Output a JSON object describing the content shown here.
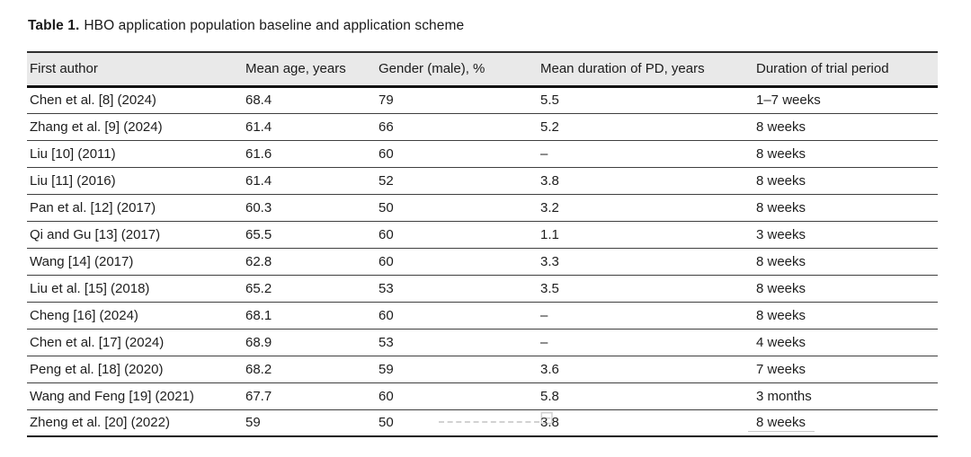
{
  "caption": {
    "label": "Table 1.",
    "text": "HBO application population baseline and application scheme"
  },
  "table": {
    "columns": [
      "First author",
      "Mean age, years",
      "Gender (male), %",
      "Mean duration of PD, years",
      "Duration of trial period"
    ],
    "rows": [
      [
        "Chen et al. [8] (2024)",
        "68.4",
        "79",
        "5.5",
        "1–7 weeks"
      ],
      [
        "Zhang et al. [9] (2024)",
        "61.4",
        "66",
        "5.2",
        "8 weeks"
      ],
      [
        "Liu [10] (2011)",
        "61.6",
        "60",
        "–",
        "8 weeks"
      ],
      [
        "Liu [11] (2016)",
        "61.4",
        "52",
        "3.8",
        "8 weeks"
      ],
      [
        "Pan et al. [12] (2017)",
        "60.3",
        "50",
        "3.2",
        "8 weeks"
      ],
      [
        "Qi and Gu [13] (2017)",
        "65.5",
        "60",
        "1.1",
        "3 weeks"
      ],
      [
        "Wang [14] (2017)",
        "62.8",
        "60",
        "3.3",
        "8 weeks"
      ],
      [
        "Liu et al. [15] (2018)",
        "65.2",
        "53",
        "3.5",
        "8 weeks"
      ],
      [
        "Cheng [16] (2024)",
        "68.1",
        "60",
        "–",
        "8 weeks"
      ],
      [
        "Chen et al. [17] (2024)",
        "68.9",
        "53",
        "–",
        "4 weeks"
      ],
      [
        "Peng et al. [18] (2020)",
        "68.2",
        "59",
        "3.6",
        "7 weeks"
      ],
      [
        "Wang and Feng [19] (2021)",
        "67.7",
        "60",
        "5.8",
        "3 months"
      ],
      [
        "Zheng et al. [20] (2022)",
        "59",
        "50",
        "3.8",
        "8 weeks"
      ]
    ]
  },
  "colors": {
    "header_background": "#e9e9e9",
    "text": "#1d1d1d",
    "rule_heavy": "#121212",
    "rule_light": "#3f3f3f"
  }
}
